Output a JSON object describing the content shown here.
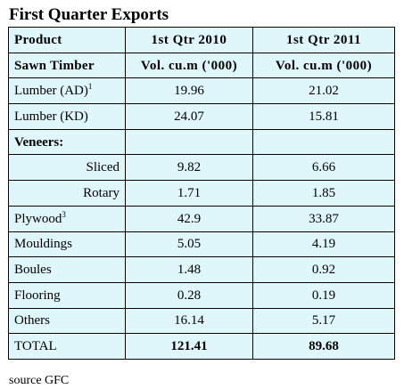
{
  "title": "First Quarter Exports",
  "header": {
    "product": "Product",
    "col_2010": "1st Qtr 2010",
    "col_2011": "1st Qtr 2011"
  },
  "subheader": {
    "category": "Sawn Timber",
    "unit_2010": "Vol. cu.m ('000)",
    "unit_2011": "Vol. cu.m ('000)"
  },
  "rows": [
    {
      "product": "Lumber (AD)",
      "footnote": "1",
      "v2010": "19.96",
      "v2011": "21.02"
    },
    {
      "product": "Lumber (KD)",
      "footnote": "",
      "v2010": "24.07",
      "v2011": "15.81"
    },
    {
      "product": "Veneers:",
      "footnote": "",
      "v2010": "",
      "v2011": ""
    },
    {
      "product": "Sliced",
      "footnote": "",
      "v2010": "9.82",
      "v2011": "6.66"
    },
    {
      "product": "Rotary",
      "footnote": "",
      "v2010": "1.71",
      "v2011": "1.85"
    },
    {
      "product": "Plywood",
      "footnote": "3",
      "v2010": "42.9",
      "v2011": "33.87"
    },
    {
      "product": "Mouldings",
      "footnote": "",
      "v2010": "5.05",
      "v2011": "4.19"
    },
    {
      "product": "Boules",
      "footnote": "",
      "v2010": "1.48",
      "v2011": "0.92"
    },
    {
      "product": "Flooring",
      "footnote": "",
      "v2010": "0.28",
      "v2011": "0.19"
    },
    {
      "product": "Others",
      "footnote": "",
      "v2010": "16.14",
      "v2011": "5.17"
    },
    {
      "product": "TOTAL",
      "footnote": "",
      "v2010": "121.41",
      "v2011": "89.68"
    }
  ],
  "source": "source GFC"
}
